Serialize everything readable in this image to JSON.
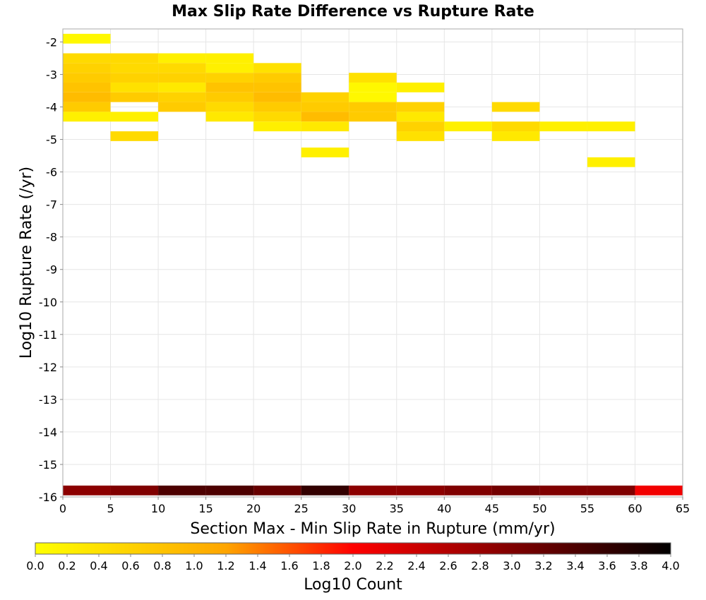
{
  "chart_data": {
    "type": "heatmap",
    "title": "Max Slip Rate Difference vs Rupture Rate",
    "xlabel": "Section Max - Min Slip Rate in Rupture (mm/yr)",
    "ylabel": "Log10 Rupture Rate (/yr)",
    "xlim": [
      0,
      65
    ],
    "ylim": [
      -16,
      -1.6
    ],
    "x_ticks": [
      "0",
      "5",
      "10",
      "15",
      "20",
      "25",
      "30",
      "35",
      "40",
      "45",
      "50",
      "55",
      "60",
      "65"
    ],
    "y_ticks": [
      "-2",
      "-3",
      "-4",
      "-5",
      "-6",
      "-7",
      "-8",
      "-9",
      "-10",
      "-11",
      "-12",
      "-13",
      "-14",
      "-15",
      "-16"
    ],
    "grid": true,
    "x_bin_width": 5,
    "y_bin_height": 0.3,
    "cells": [
      {
        "x": 0,
        "y": -1.9,
        "value": 0.1
      },
      {
        "x": 0,
        "y": -2.5,
        "value": 0.5
      },
      {
        "x": 0,
        "y": -2.8,
        "value": 0.6
      },
      {
        "x": 0,
        "y": -3.1,
        "value": 0.7
      },
      {
        "x": 0,
        "y": -3.4,
        "value": 0.8
      },
      {
        "x": 0,
        "y": -3.7,
        "value": 0.9
      },
      {
        "x": 0,
        "y": -4.0,
        "value": 0.7
      },
      {
        "x": 0,
        "y": -4.3,
        "value": 0.2
      },
      {
        "x": 5,
        "y": -2.5,
        "value": 0.5
      },
      {
        "x": 5,
        "y": -2.8,
        "value": 0.5
      },
      {
        "x": 5,
        "y": -3.1,
        "value": 0.6
      },
      {
        "x": 5,
        "y": -3.4,
        "value": 0.4
      },
      {
        "x": 5,
        "y": -3.7,
        "value": 0.7
      },
      {
        "x": 5,
        "y": -4.3,
        "value": 0.2
      },
      {
        "x": 5,
        "y": -4.9,
        "value": 0.5
      },
      {
        "x": 10,
        "y": -2.5,
        "value": 0.2
      },
      {
        "x": 10,
        "y": -2.8,
        "value": 0.5
      },
      {
        "x": 10,
        "y": -3.1,
        "value": 0.6
      },
      {
        "x": 10,
        "y": -3.4,
        "value": 0.3
      },
      {
        "x": 10,
        "y": -3.7,
        "value": 0.6
      },
      {
        "x": 10,
        "y": -4.0,
        "value": 0.7
      },
      {
        "x": 15,
        "y": -2.5,
        "value": 0.2
      },
      {
        "x": 15,
        "y": -2.8,
        "value": 0.2
      },
      {
        "x": 15,
        "y": -3.1,
        "value": 0.6
      },
      {
        "x": 15,
        "y": -3.4,
        "value": 0.8
      },
      {
        "x": 15,
        "y": -3.7,
        "value": 0.7
      },
      {
        "x": 15,
        "y": -4.0,
        "value": 0.5
      },
      {
        "x": 15,
        "y": -4.3,
        "value": 0.3
      },
      {
        "x": 20,
        "y": -2.8,
        "value": 0.4
      },
      {
        "x": 20,
        "y": -3.1,
        "value": 0.7
      },
      {
        "x": 20,
        "y": -3.4,
        "value": 0.8
      },
      {
        "x": 20,
        "y": -3.7,
        "value": 0.9
      },
      {
        "x": 20,
        "y": -4.0,
        "value": 0.7
      },
      {
        "x": 20,
        "y": -4.3,
        "value": 0.5
      },
      {
        "x": 20,
        "y": -4.6,
        "value": 0.2
      },
      {
        "x": 25,
        "y": -3.7,
        "value": 0.6
      },
      {
        "x": 25,
        "y": -4.0,
        "value": 0.7
      },
      {
        "x": 25,
        "y": -4.3,
        "value": 0.9
      },
      {
        "x": 25,
        "y": -4.6,
        "value": 0.3
      },
      {
        "x": 25,
        "y": -5.4,
        "value": 0.2
      },
      {
        "x": 30,
        "y": -3.1,
        "value": 0.4
      },
      {
        "x": 30,
        "y": -3.4,
        "value": 0.1
      },
      {
        "x": 30,
        "y": -3.7,
        "value": 0.1
      },
      {
        "x": 30,
        "y": -4.0,
        "value": 0.7
      },
      {
        "x": 30,
        "y": -4.3,
        "value": 0.7
      },
      {
        "x": 35,
        "y": -3.4,
        "value": 0.2
      },
      {
        "x": 35,
        "y": -4.0,
        "value": 0.6
      },
      {
        "x": 35,
        "y": -4.3,
        "value": 0.3
      },
      {
        "x": 35,
        "y": -4.6,
        "value": 0.6
      },
      {
        "x": 35,
        "y": -4.9,
        "value": 0.4
      },
      {
        "x": 40,
        "y": -4.6,
        "value": 0.2
      },
      {
        "x": 45,
        "y": -4.0,
        "value": 0.5
      },
      {
        "x": 45,
        "y": -4.6,
        "value": 0.5
      },
      {
        "x": 45,
        "y": -4.9,
        "value": 0.3
      },
      {
        "x": 50,
        "y": -4.6,
        "value": 0.2
      },
      {
        "x": 55,
        "y": -4.6,
        "value": 0.2
      },
      {
        "x": 55,
        "y": -5.7,
        "value": 0.2
      },
      {
        "x": 0,
        "y": -15.8,
        "value": 2.9
      },
      {
        "x": 5,
        "y": -15.8,
        "value": 3.0
      },
      {
        "x": 10,
        "y": -15.8,
        "value": 3.4
      },
      {
        "x": 15,
        "y": -15.8,
        "value": 3.4
      },
      {
        "x": 20,
        "y": -15.8,
        "value": 3.2
      },
      {
        "x": 25,
        "y": -15.8,
        "value": 3.6
      },
      {
        "x": 30,
        "y": -15.8,
        "value": 2.9
      },
      {
        "x": 35,
        "y": -15.8,
        "value": 2.9
      },
      {
        "x": 40,
        "y": -15.8,
        "value": 3.0
      },
      {
        "x": 45,
        "y": -15.8,
        "value": 3.1
      },
      {
        "x": 50,
        "y": -15.8,
        "value": 3.0
      },
      {
        "x": 55,
        "y": -15.8,
        "value": 3.0
      },
      {
        "x": 60,
        "y": -15.8,
        "value": 2.1
      }
    ],
    "colorbar": {
      "label": "Log10 Count",
      "range": [
        0.0,
        4.0
      ],
      "ticks": [
        "0.0",
        "0.2",
        "0.4",
        "0.6",
        "0.8",
        "1.0",
        "1.2",
        "1.4",
        "1.6",
        "1.8",
        "2.0",
        "2.2",
        "2.4",
        "2.6",
        "2.8",
        "3.0",
        "3.2",
        "3.4",
        "3.6",
        "3.8",
        "4.0"
      ],
      "colors": [
        "#ffff00",
        "#ffa500",
        "#ff0000",
        "#000000"
      ],
      "color_positions": [
        0.0,
        0.3,
        0.5,
        1.0
      ]
    }
  }
}
